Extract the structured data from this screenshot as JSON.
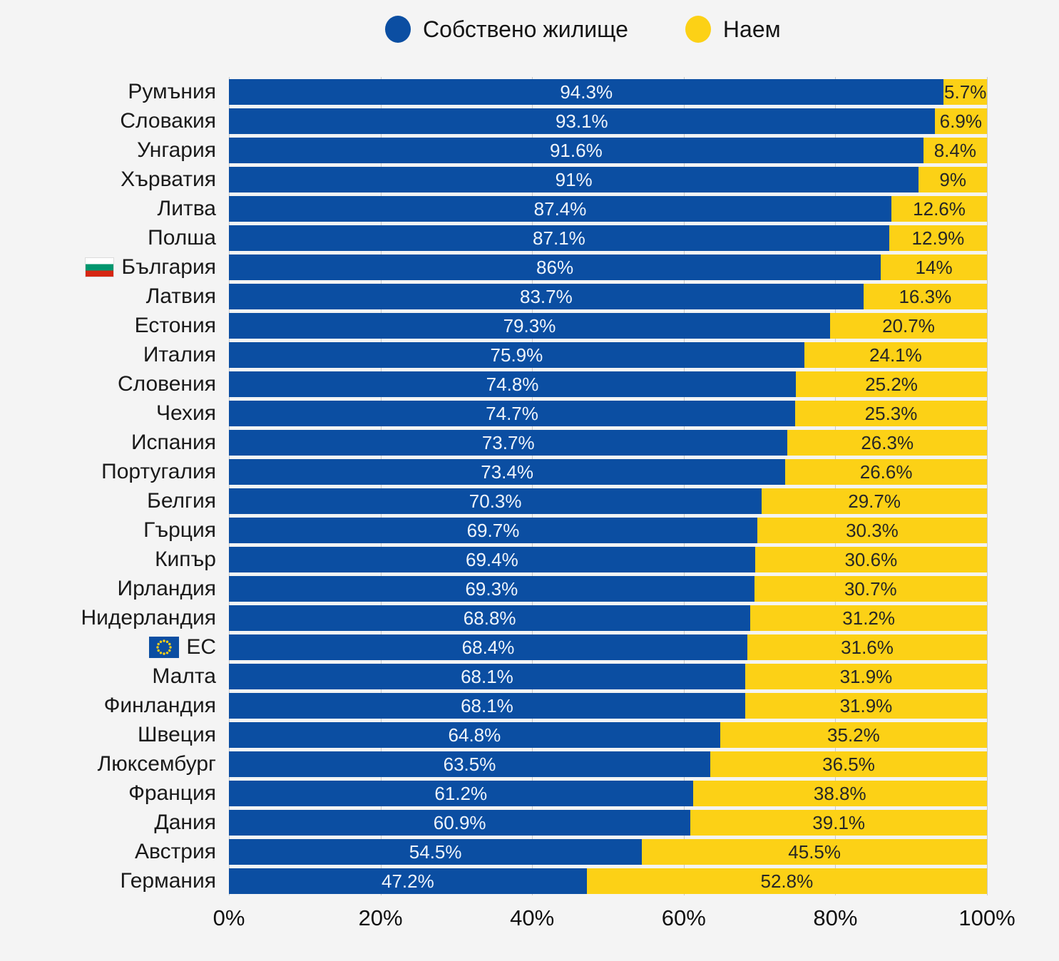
{
  "legend": {
    "items": [
      {
        "label": "Собствено жилище",
        "color": "#0b4ea2"
      },
      {
        "label": "Наем",
        "color": "#fcd116"
      }
    ]
  },
  "chart_data": {
    "type": "bar",
    "orientation": "horizontal",
    "stacked": true,
    "title": "",
    "xlabel": "",
    "ylabel": "",
    "xlim": [
      0,
      100
    ],
    "grid": true,
    "legend_position": "top",
    "colors": {
      "own": "#0b4ea2",
      "rent": "#fcd116",
      "gridline": "#c9c9c9",
      "background": "#f4f4f4"
    },
    "series_names": [
      "Собствено жилище",
      "Наем"
    ],
    "xticks": {
      "values": [
        0,
        20,
        40,
        60,
        80,
        100
      ],
      "labels": [
        "0%",
        "20%",
        "40%",
        "60%",
        "80%",
        "100%"
      ]
    },
    "gridline_values": [
      0,
      20,
      40,
      60,
      80,
      100
    ],
    "categories": [
      "Румъния",
      "Словакия",
      "Унгария",
      "Хърватия",
      "Литва",
      "Полша",
      "България",
      "Латвия",
      "Естония",
      "Италия",
      "Словения",
      "Чехия",
      "Испания",
      "Португалия",
      "Белгия",
      "Гърция",
      "Кипър",
      "Ирландия",
      "Нидерландия",
      "ЕС",
      "Малта",
      "Финландия",
      "Швеция",
      "Люксембург",
      "Франция",
      "Дания",
      "Австрия",
      "Германия"
    ],
    "rows": [
      {
        "country": "Румъния",
        "own": 94.3,
        "rent": 5.7,
        "own_label": "94.3%",
        "rent_label": "5.7%",
        "flag": null
      },
      {
        "country": "Словакия",
        "own": 93.1,
        "rent": 6.9,
        "own_label": "93.1%",
        "rent_label": "6.9%",
        "flag": null
      },
      {
        "country": "Унгария",
        "own": 91.6,
        "rent": 8.4,
        "own_label": "91.6%",
        "rent_label": "8.4%",
        "flag": null
      },
      {
        "country": "Хърватия",
        "own": 91,
        "rent": 9,
        "own_label": "91%",
        "rent_label": "9%",
        "flag": null
      },
      {
        "country": "Литва",
        "own": 87.4,
        "rent": 12.6,
        "own_label": "87.4%",
        "rent_label": "12.6%",
        "flag": null
      },
      {
        "country": "Полша",
        "own": 87.1,
        "rent": 12.9,
        "own_label": "87.1%",
        "rent_label": "12.9%",
        "flag": null
      },
      {
        "country": "България",
        "own": 86,
        "rent": 14,
        "own_label": "86%",
        "rent_label": "14%",
        "flag": "bg"
      },
      {
        "country": "Латвия",
        "own": 83.7,
        "rent": 16.3,
        "own_label": "83.7%",
        "rent_label": "16.3%",
        "flag": null
      },
      {
        "country": "Естония",
        "own": 79.3,
        "rent": 20.7,
        "own_label": "79.3%",
        "rent_label": "20.7%",
        "flag": null
      },
      {
        "country": "Италия",
        "own": 75.9,
        "rent": 24.1,
        "own_label": "75.9%",
        "rent_label": "24.1%",
        "flag": null
      },
      {
        "country": "Словения",
        "own": 74.8,
        "rent": 25.2,
        "own_label": "74.8%",
        "rent_label": "25.2%",
        "flag": null
      },
      {
        "country": "Чехия",
        "own": 74.7,
        "rent": 25.3,
        "own_label": "74.7%",
        "rent_label": "25.3%",
        "flag": null
      },
      {
        "country": "Испания",
        "own": 73.7,
        "rent": 26.3,
        "own_label": "73.7%",
        "rent_label": "26.3%",
        "flag": null
      },
      {
        "country": "Португалия",
        "own": 73.4,
        "rent": 26.6,
        "own_label": "73.4%",
        "rent_label": "26.6%",
        "flag": null
      },
      {
        "country": "Белгия",
        "own": 70.3,
        "rent": 29.7,
        "own_label": "70.3%",
        "rent_label": "29.7%",
        "flag": null
      },
      {
        "country": "Гърция",
        "own": 69.7,
        "rent": 30.3,
        "own_label": "69.7%",
        "rent_label": "30.3%",
        "flag": null
      },
      {
        "country": "Кипър",
        "own": 69.4,
        "rent": 30.6,
        "own_label": "69.4%",
        "rent_label": "30.6%",
        "flag": null
      },
      {
        "country": "Ирландия",
        "own": 69.3,
        "rent": 30.7,
        "own_label": "69.3%",
        "rent_label": "30.7%",
        "flag": null
      },
      {
        "country": "Нидерландия",
        "own": 68.8,
        "rent": 31.2,
        "own_label": "68.8%",
        "rent_label": "31.2%",
        "flag": null
      },
      {
        "country": "ЕС",
        "own": 68.4,
        "rent": 31.6,
        "own_label": "68.4%",
        "rent_label": "31.6%",
        "flag": "eu"
      },
      {
        "country": "Малта",
        "own": 68.1,
        "rent": 31.9,
        "own_label": "68.1%",
        "rent_label": "31.9%",
        "flag": null
      },
      {
        "country": "Финландия",
        "own": 68.1,
        "rent": 31.9,
        "own_label": "68.1%",
        "rent_label": "31.9%",
        "flag": null
      },
      {
        "country": "Швеция",
        "own": 64.8,
        "rent": 35.2,
        "own_label": "64.8%",
        "rent_label": "35.2%",
        "flag": null
      },
      {
        "country": "Люксембург",
        "own": 63.5,
        "rent": 36.5,
        "own_label": "63.5%",
        "rent_label": "36.5%",
        "flag": null
      },
      {
        "country": "Франция",
        "own": 61.2,
        "rent": 38.8,
        "own_label": "61.2%",
        "rent_label": "38.8%",
        "flag": null
      },
      {
        "country": "Дания",
        "own": 60.9,
        "rent": 39.1,
        "own_label": "60.9%",
        "rent_label": "39.1%",
        "flag": null
      },
      {
        "country": "Австрия",
        "own": 54.5,
        "rent": 45.5,
        "own_label": "54.5%",
        "rent_label": "45.5%",
        "flag": null
      },
      {
        "country": "Германия",
        "own": 47.2,
        "rent": 52.8,
        "own_label": "47.2%",
        "rent_label": "52.8%",
        "flag": null
      }
    ]
  }
}
